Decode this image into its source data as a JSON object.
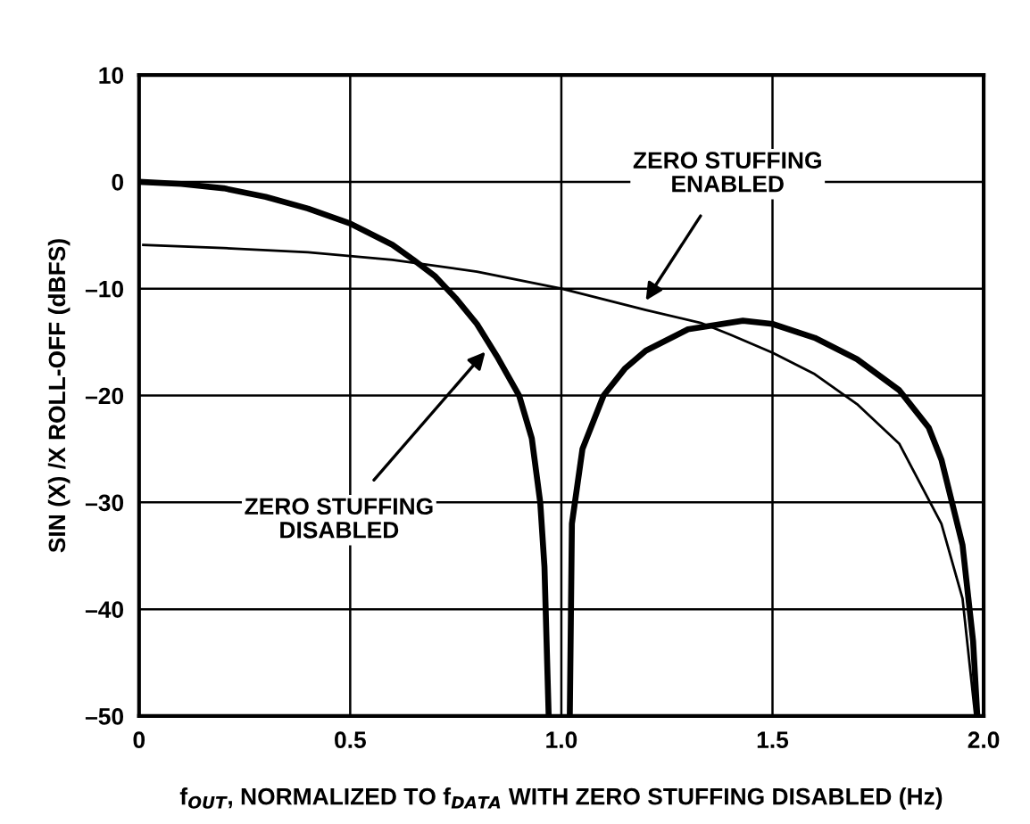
{
  "chart_data": {
    "type": "line",
    "xlabel": "f$_{OUT}$, NORMALIZED TO f$_{DATA}$ WITH ZERO STUFFING DISABLED (Hz)",
    "ylabel": "SIN (X) /X ROLL-OFF (dBFS)",
    "xlim": [
      0,
      2.0
    ],
    "xticks": [
      0,
      0.5,
      {
        "value": 1.0,
        "label": "1.0"
      },
      1.5,
      {
        "value": 2.0,
        "label": "2.0"
      }
    ],
    "ylim": [
      -50,
      10
    ],
    "yticks": [
      {
        "value": -50,
        "label": "–50"
      },
      {
        "value": -40,
        "label": "–40"
      },
      {
        "value": -30,
        "label": "–30"
      },
      {
        "value": -20,
        "label": "–20"
      },
      {
        "value": -10,
        "label": "–10"
      },
      0,
      10
    ],
    "grid": true,
    "legend": false,
    "marker": "none",
    "line_style": "solid",
    "series": [
      {
        "color": "#000000",
        "x": [
          0,
          0.1,
          0.2,
          0.3,
          0.4,
          0.5,
          0.6,
          0.65,
          0.7,
          0.75,
          0.8,
          0.85,
          0.9,
          0.93,
          0.95,
          0.96,
          0.97,
          null,
          1.02,
          1.025,
          1.05,
          1.1,
          1.15,
          1.2,
          1.3,
          1.43,
          1.5,
          1.6,
          1.7,
          1.8,
          1.87,
          1.9,
          1.95,
          1.975,
          1.985
        ],
        "values": [
          0,
          -0.2,
          -0.6,
          -1.4,
          -2.5,
          -3.9,
          -5.9,
          -7.3,
          -8.8,
          -10.9,
          -13.3,
          -16.5,
          -20,
          -24,
          -30,
          -36,
          -50,
          null,
          -50,
          -32,
          -25,
          -20,
          -17.5,
          -15.8,
          -13.8,
          -13.0,
          -13.3,
          -14.6,
          -16.6,
          -19.5,
          -23,
          -26,
          -34,
          -43,
          -50
        ]
      },
      {
        "color": "#000000",
        "x": [
          0.01,
          0.2,
          0.4,
          0.6,
          0.8,
          1.0,
          1.2,
          1.33,
          1.4,
          1.5,
          1.6,
          1.7,
          1.8,
          1.9,
          1.95,
          1.98
        ],
        "values": [
          -5.9,
          -6.2,
          -6.6,
          -7.3,
          -8.4,
          -10.0,
          -12,
          -13.2,
          -14.3,
          -16,
          -18,
          -20.8,
          -24.5,
          -32,
          -39,
          -50
        ]
      }
    ],
    "annotations": [
      {
        "text": "ZERO STUFFING\nENABLED",
        "x": 1.2,
        "y": -11.1
      },
      {
        "text": "ZERO STUFFING\nDISABLED",
        "x": 0.82,
        "y": -15.9
      }
    ]
  }
}
